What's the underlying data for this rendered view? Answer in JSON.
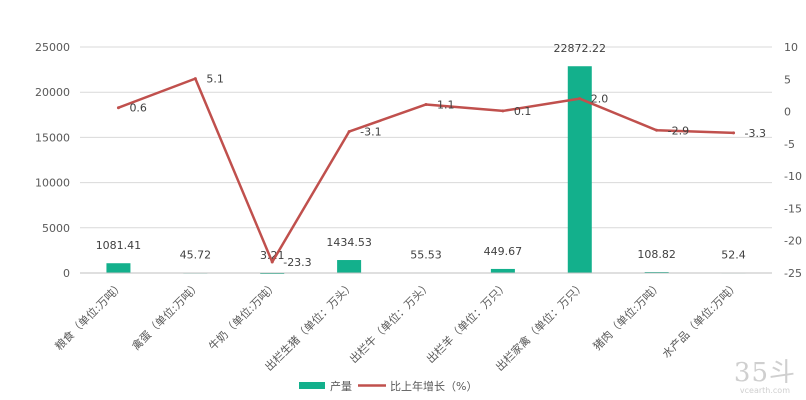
{
  "chart_data": {
    "type": "bar",
    "categories": [
      "粮食（单位:万吨）",
      "禽蛋（单位:万吨）",
      "牛奶（单位:万吨）",
      "出栏生猪（单位：万头）",
      "出栏牛（单位：万头）",
      "出栏羊（单位：万只）",
      "出栏家禽（单位：万只）",
      "猪肉（单位:万吨）",
      "水产品（单位:万吨）"
    ],
    "series": [
      {
        "name": "产量",
        "type": "bar",
        "axis": "left",
        "color": "#13b08c",
        "values": [
          1081.41,
          45.72,
          3.21,
          1434.53,
          55.53,
          449.67,
          22872.22,
          108.82,
          52.4
        ],
        "labels": [
          "1081.41",
          "45.72",
          "3.21",
          "1434.53",
          "55.53",
          "449.67",
          "22872.22",
          "108.82",
          "52.4"
        ]
      },
      {
        "name": "比上年增长（%）",
        "type": "line",
        "axis": "right",
        "color": "#c0504d",
        "values": [
          0.6,
          5.1,
          -23.3,
          -3.1,
          1.1,
          0.1,
          2.0,
          -2.9,
          -3.3
        ],
        "labels": [
          "0.6",
          "5.1",
          "-23.3",
          "-3.1",
          "1.1",
          "0.1",
          "2.0",
          "-2.9",
          "-3.3"
        ]
      }
    ],
    "y_left": {
      "min": 0,
      "max": 25000,
      "ticks": [
        "0",
        "5000",
        "10000",
        "15000",
        "20000",
        "25000"
      ]
    },
    "y_right": {
      "min": -25,
      "max": 10,
      "ticks": [
        "-25",
        "-20",
        "-15",
        "-10",
        "-5",
        "0",
        "5",
        "10"
      ]
    },
    "grid": true,
    "legend": "bottom"
  },
  "watermark": {
    "big": "35斗",
    "small": "vcearth.com"
  }
}
